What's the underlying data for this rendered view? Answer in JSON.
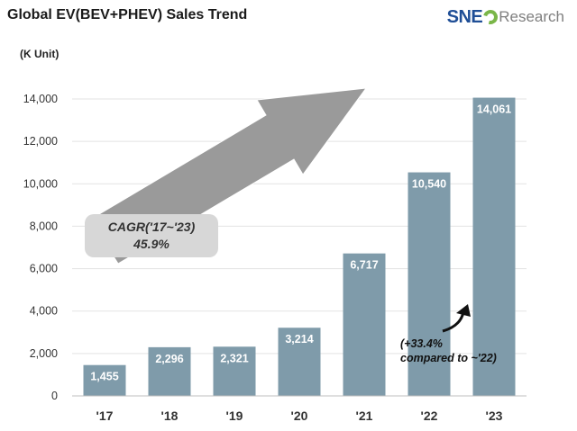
{
  "header": {
    "title": "Global EV(BEV+PHEV)  Sales Trend",
    "logo_sne": "SNE",
    "logo_research": "Research",
    "unit": "(K Unit)"
  },
  "annotations": {
    "cagr_line1": "CAGR('17~'23)",
    "cagr_line2": "45.9%",
    "yoy_line1": "(+33.4%",
    "yoy_line2": "compared to ~'22)"
  },
  "colors": {
    "bar": "#7f9baa",
    "grid": "#e3e3e3",
    "arrow": "#9a9a9a"
  },
  "chart_data": {
    "type": "bar",
    "title": "Global EV(BEV+PHEV)  Sales Trend",
    "ylabel": "(K Unit)",
    "xlabel": "",
    "categories": [
      "'17",
      "'18",
      "'19",
      "'20",
      "'21",
      "'22",
      "'23"
    ],
    "values": [
      1455,
      2296,
      2321,
      3214,
      6717,
      10540,
      14061
    ],
    "value_labels": [
      "1,455",
      "2,296",
      "2,321",
      "3,214",
      "6,717",
      "10,540",
      "14,061"
    ],
    "ylim": [
      0,
      14000
    ],
    "yticks": [
      0,
      2000,
      4000,
      6000,
      8000,
      10000,
      12000,
      14000
    ],
    "ytick_labels": [
      "0",
      "2,000",
      "4,000",
      "6,000",
      "8,000",
      "10,000",
      "12,000",
      "14,000"
    ],
    "grid": true,
    "legend": "none"
  }
}
